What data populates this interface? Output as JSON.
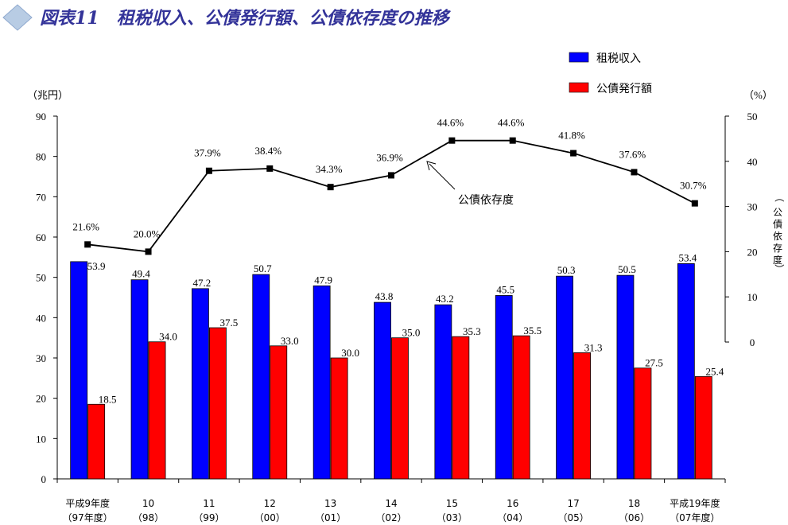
{
  "header": {
    "title": "図表11　租税収入、公債発行額、公債依存度の推移",
    "diamond_icon": "diamond-icon"
  },
  "colors": {
    "tax": "#0000ff",
    "bond": "#ff0000",
    "line": "#000000",
    "title": "#333399",
    "diamond": "#b8cce4"
  },
  "chart_data": {
    "type": "bar",
    "categories": [
      [
        "平成9年度",
        "（97年度）"
      ],
      [
        "10",
        "（98）"
      ],
      [
        "11",
        "（99）"
      ],
      [
        "12",
        "（00）"
      ],
      [
        "13",
        "（01）"
      ],
      [
        "14",
        "（02）"
      ],
      [
        "15",
        "（03）"
      ],
      [
        "16",
        "（04）"
      ],
      [
        "17",
        "（05）"
      ],
      [
        "18",
        "（06）"
      ],
      [
        "平成19年度",
        "（07年度）"
      ]
    ],
    "series": [
      {
        "name": "租税収入",
        "kind": "bar",
        "axis": "left",
        "values": [
          53.9,
          49.4,
          47.2,
          50.7,
          47.9,
          43.8,
          43.2,
          45.5,
          50.3,
          50.5,
          53.4
        ],
        "labels": [
          "53.9",
          "49.4",
          "47.2",
          "50.7",
          "47.9",
          "43.8",
          "43.2",
          "45.5",
          "50.3",
          "50.5",
          "53.4"
        ]
      },
      {
        "name": "公債発行額",
        "kind": "bar",
        "axis": "left",
        "values": [
          18.5,
          34.0,
          37.5,
          33.0,
          30.0,
          35.0,
          35.3,
          35.5,
          31.3,
          27.5,
          25.4
        ],
        "labels": [
          "18.5",
          "34.0",
          "37.5",
          "33.0",
          "30.0",
          "35.0",
          "35.3",
          "35.5",
          "31.3",
          "27.5",
          "25.4"
        ]
      },
      {
        "name": "公債依存度",
        "kind": "line",
        "axis": "right",
        "values": [
          21.6,
          20.0,
          37.9,
          38.4,
          34.3,
          36.9,
          44.6,
          44.6,
          41.8,
          37.6,
          30.7
        ],
        "labels": [
          "21.6%",
          "20.0%",
          "37.9%",
          "38.4%",
          "34.3%",
          "36.9%",
          "44.6%",
          "44.6%",
          "41.8%",
          "37.6%",
          "30.7%"
        ]
      }
    ],
    "y_left": {
      "unit": "（兆円）",
      "ylim": [
        0,
        90
      ],
      "ticks": [
        "0",
        "10",
        "20",
        "30",
        "40",
        "50",
        "60",
        "70",
        "80",
        "90"
      ]
    },
    "y_right": {
      "unit": "（%）",
      "ylim": [
        0,
        50
      ],
      "ticks": [
        "0",
        "10",
        "20",
        "30",
        "40",
        "50"
      ],
      "label": "（公債依存度）"
    },
    "legend": {
      "position": "top-right",
      "entries": [
        "租税収入",
        "公債発行額"
      ]
    },
    "annotation": {
      "text": "公債依存度"
    },
    "grid": false
  }
}
